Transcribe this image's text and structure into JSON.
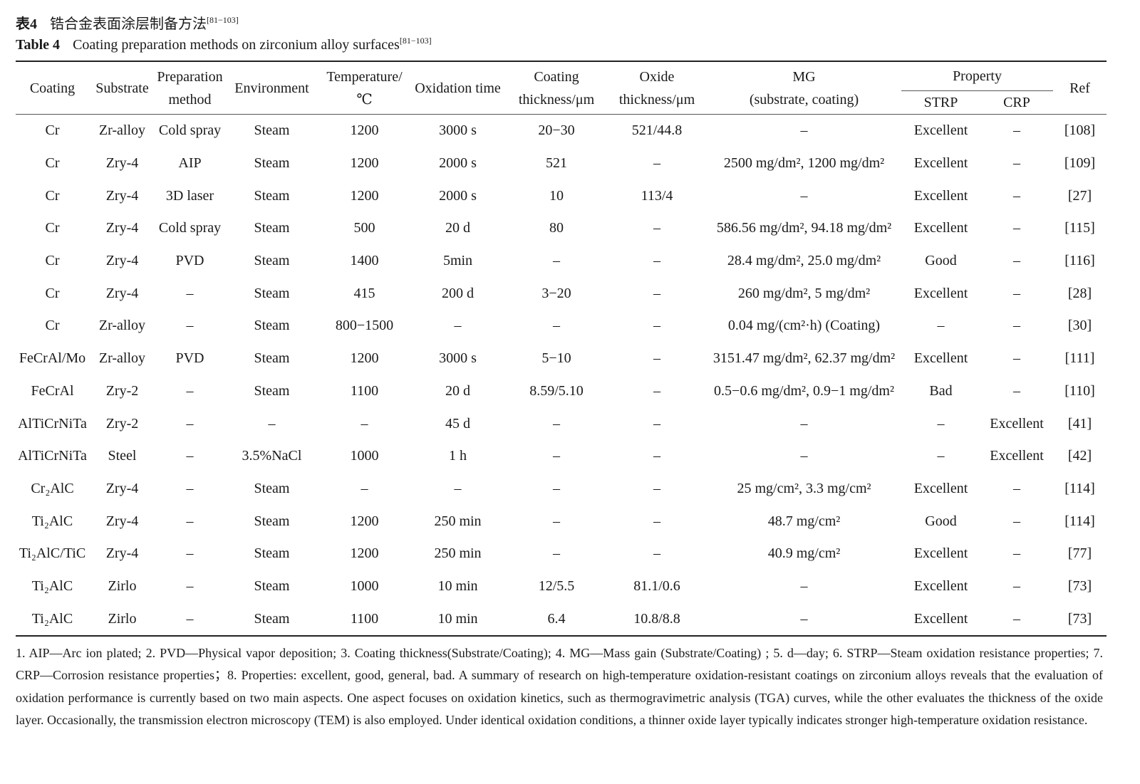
{
  "caption_cn": {
    "label": "表4",
    "title": "锆合金表面涂层制备方法",
    "ref": "[81−103]"
  },
  "caption_en": {
    "label": "Table 4",
    "title": "Coating preparation methods on zirconium alloy surfaces",
    "ref": "[81−103]"
  },
  "headers": {
    "coating": "Coating",
    "substrate": "Substrate",
    "prep1": "Preparation",
    "prep2": "method",
    "env": "Environment",
    "temp1": "Temperature/",
    "temp2": "℃",
    "oxtime": "Oxidation time",
    "cthk1": "Coating",
    "cthk2": "thickness/μm",
    "othk1": "Oxide",
    "othk2": "thickness/μm",
    "mg1": "MG",
    "mg2": "(substrate, coating)",
    "property": "Property",
    "strp": "STRP",
    "crp": "CRP",
    "ref": "Ref"
  },
  "rows": [
    [
      "Cr",
      "Zr-alloy",
      "Cold spray",
      "Steam",
      "1200",
      "3000 s",
      "20−30",
      "521/44.8",
      "–",
      "Excellent",
      "–",
      "[108]"
    ],
    [
      "Cr",
      "Zry-4",
      "AIP",
      "Steam",
      "1200",
      "2000 s",
      "521",
      "–",
      "2500 mg/dm², 1200 mg/dm²",
      "Excellent",
      "–",
      "[109]"
    ],
    [
      "Cr",
      "Zry-4",
      "3D laser",
      "Steam",
      "1200",
      "2000 s",
      "10",
      "113/4",
      "–",
      "Excellent",
      "–",
      "[27]"
    ],
    [
      "Cr",
      "Zry-4",
      "Cold spray",
      "Steam",
      "500",
      "20 d",
      "80",
      "–",
      "586.56 mg/dm², 94.18 mg/dm²",
      "Excellent",
      "–",
      "[115]"
    ],
    [
      "Cr",
      "Zry-4",
      "PVD",
      "Steam",
      "1400",
      "5min",
      "–",
      "–",
      "28.4 mg/dm², 25.0 mg/dm²",
      "Good",
      "–",
      "[116]"
    ],
    [
      "Cr",
      "Zry-4",
      "–",
      "Steam",
      "415",
      "200 d",
      "3−20",
      "–",
      "260 mg/dm², 5 mg/dm²",
      "Excellent",
      "–",
      "[28]"
    ],
    [
      "Cr",
      "Zr-alloy",
      "–",
      "Steam",
      "800−1500",
      "–",
      "–",
      "–",
      "0.04 mg/(cm²·h) (Coating)",
      "–",
      "–",
      "[30]"
    ],
    [
      "FeCrAl/Mo",
      "Zr-alloy",
      "PVD",
      "Steam",
      "1200",
      "3000 s",
      "5−10",
      "–",
      "3151.47 mg/dm², 62.37 mg/dm²",
      "Excellent",
      "–",
      "[111]"
    ],
    [
      "FeCrAl",
      "Zry-2",
      "–",
      "Steam",
      "1100",
      "20 d",
      "8.59/5.10",
      "–",
      "0.5−0.6 mg/dm², 0.9−1 mg/dm²",
      "Bad",
      "–",
      "[110]"
    ],
    [
      "AlTiCrNiTa",
      "Zry-2",
      "–",
      "–",
      "–",
      "45 d",
      "–",
      "–",
      "–",
      "–",
      "Excellent",
      "[41]"
    ],
    [
      "AlTiCrNiTa",
      "Steel",
      "–",
      "3.5%NaCl",
      "1000",
      "1 h",
      "–",
      "–",
      "–",
      "–",
      "Excellent",
      "[42]"
    ],
    [
      "Cr₂AlC",
      "Zry-4",
      "–",
      "Steam",
      "–",
      "–",
      "–",
      "–",
      "25 mg/cm², 3.3 mg/cm²",
      "Excellent",
      "–",
      "[114]"
    ],
    [
      "Ti₂AlC",
      "Zry-4",
      "–",
      "Steam",
      "1200",
      "250 min",
      "–",
      "–",
      "48.7 mg/cm²",
      "Good",
      "–",
      "[114]"
    ],
    [
      "Ti₂AlC/TiC",
      "Zry-4",
      "–",
      "Steam",
      "1200",
      "250 min",
      "–",
      "–",
      "40.9 mg/cm²",
      "Excellent",
      "–",
      "[77]"
    ],
    [
      "Ti₂AlC",
      "Zirlo",
      "–",
      "Steam",
      "1000",
      "10 min",
      "12/5.5",
      "81.1/0.6",
      "–",
      "Excellent",
      "–",
      "[73]"
    ],
    [
      "Ti₂AlC",
      "Zirlo",
      "–",
      "Steam",
      "1100",
      "10 min",
      "6.4",
      "10.8/8.8",
      "–",
      "Excellent",
      "–",
      "[73]"
    ]
  ],
  "footnote": "1. AIP—Arc ion plated; 2. PVD—Physical vapor deposition; 3. Coating thickness(Substrate/Coating); 4. MG—Mass gain (Substrate/Coating) ; 5. d—day; 6. STRP—Steam oxidation resistance properties; 7. CRP—Corrosion resistance properties；8. Properties: excellent, good, general, bad. A summary of research on high-temperature oxidation-resistant coatings on zirconium alloys reveals that the evaluation of oxidation performance is currently based on two main aspects. One aspect focuses on oxidation kinetics, such as thermogravimetric analysis (TGA) curves, while the other evaluates the thickness of the oxide layer. Occasionally, the transmission electron microscopy (TEM) is also employed. Under identical oxidation conditions, a thinner oxide layer typically indicates stronger high-temperature oxidation resistance."
}
